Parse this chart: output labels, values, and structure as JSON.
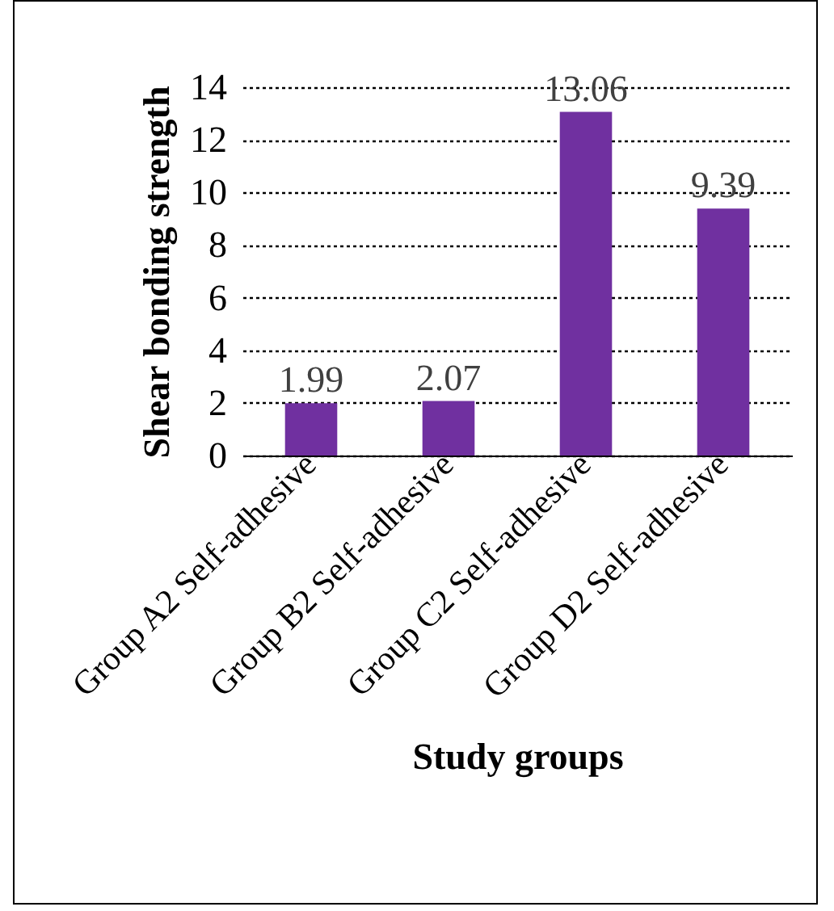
{
  "chart_data": {
    "type": "bar",
    "xlabel": "Study groups",
    "ylabel": "Shear bonding strength",
    "categories": [
      "Group A2 Self-adhesive",
      "Group B2 Self-adhesive",
      "Group C2 Self-adhesive",
      "Group D2 Self-adhesive"
    ],
    "values": [
      1.99,
      2.07,
      13.06,
      9.39
    ],
    "color": "#7030a0",
    "ylim": [
      0,
      14
    ],
    "yticks": [
      0,
      2,
      4,
      6,
      8,
      10,
      12,
      14
    ],
    "grid": "y",
    "data_labels": true
  }
}
